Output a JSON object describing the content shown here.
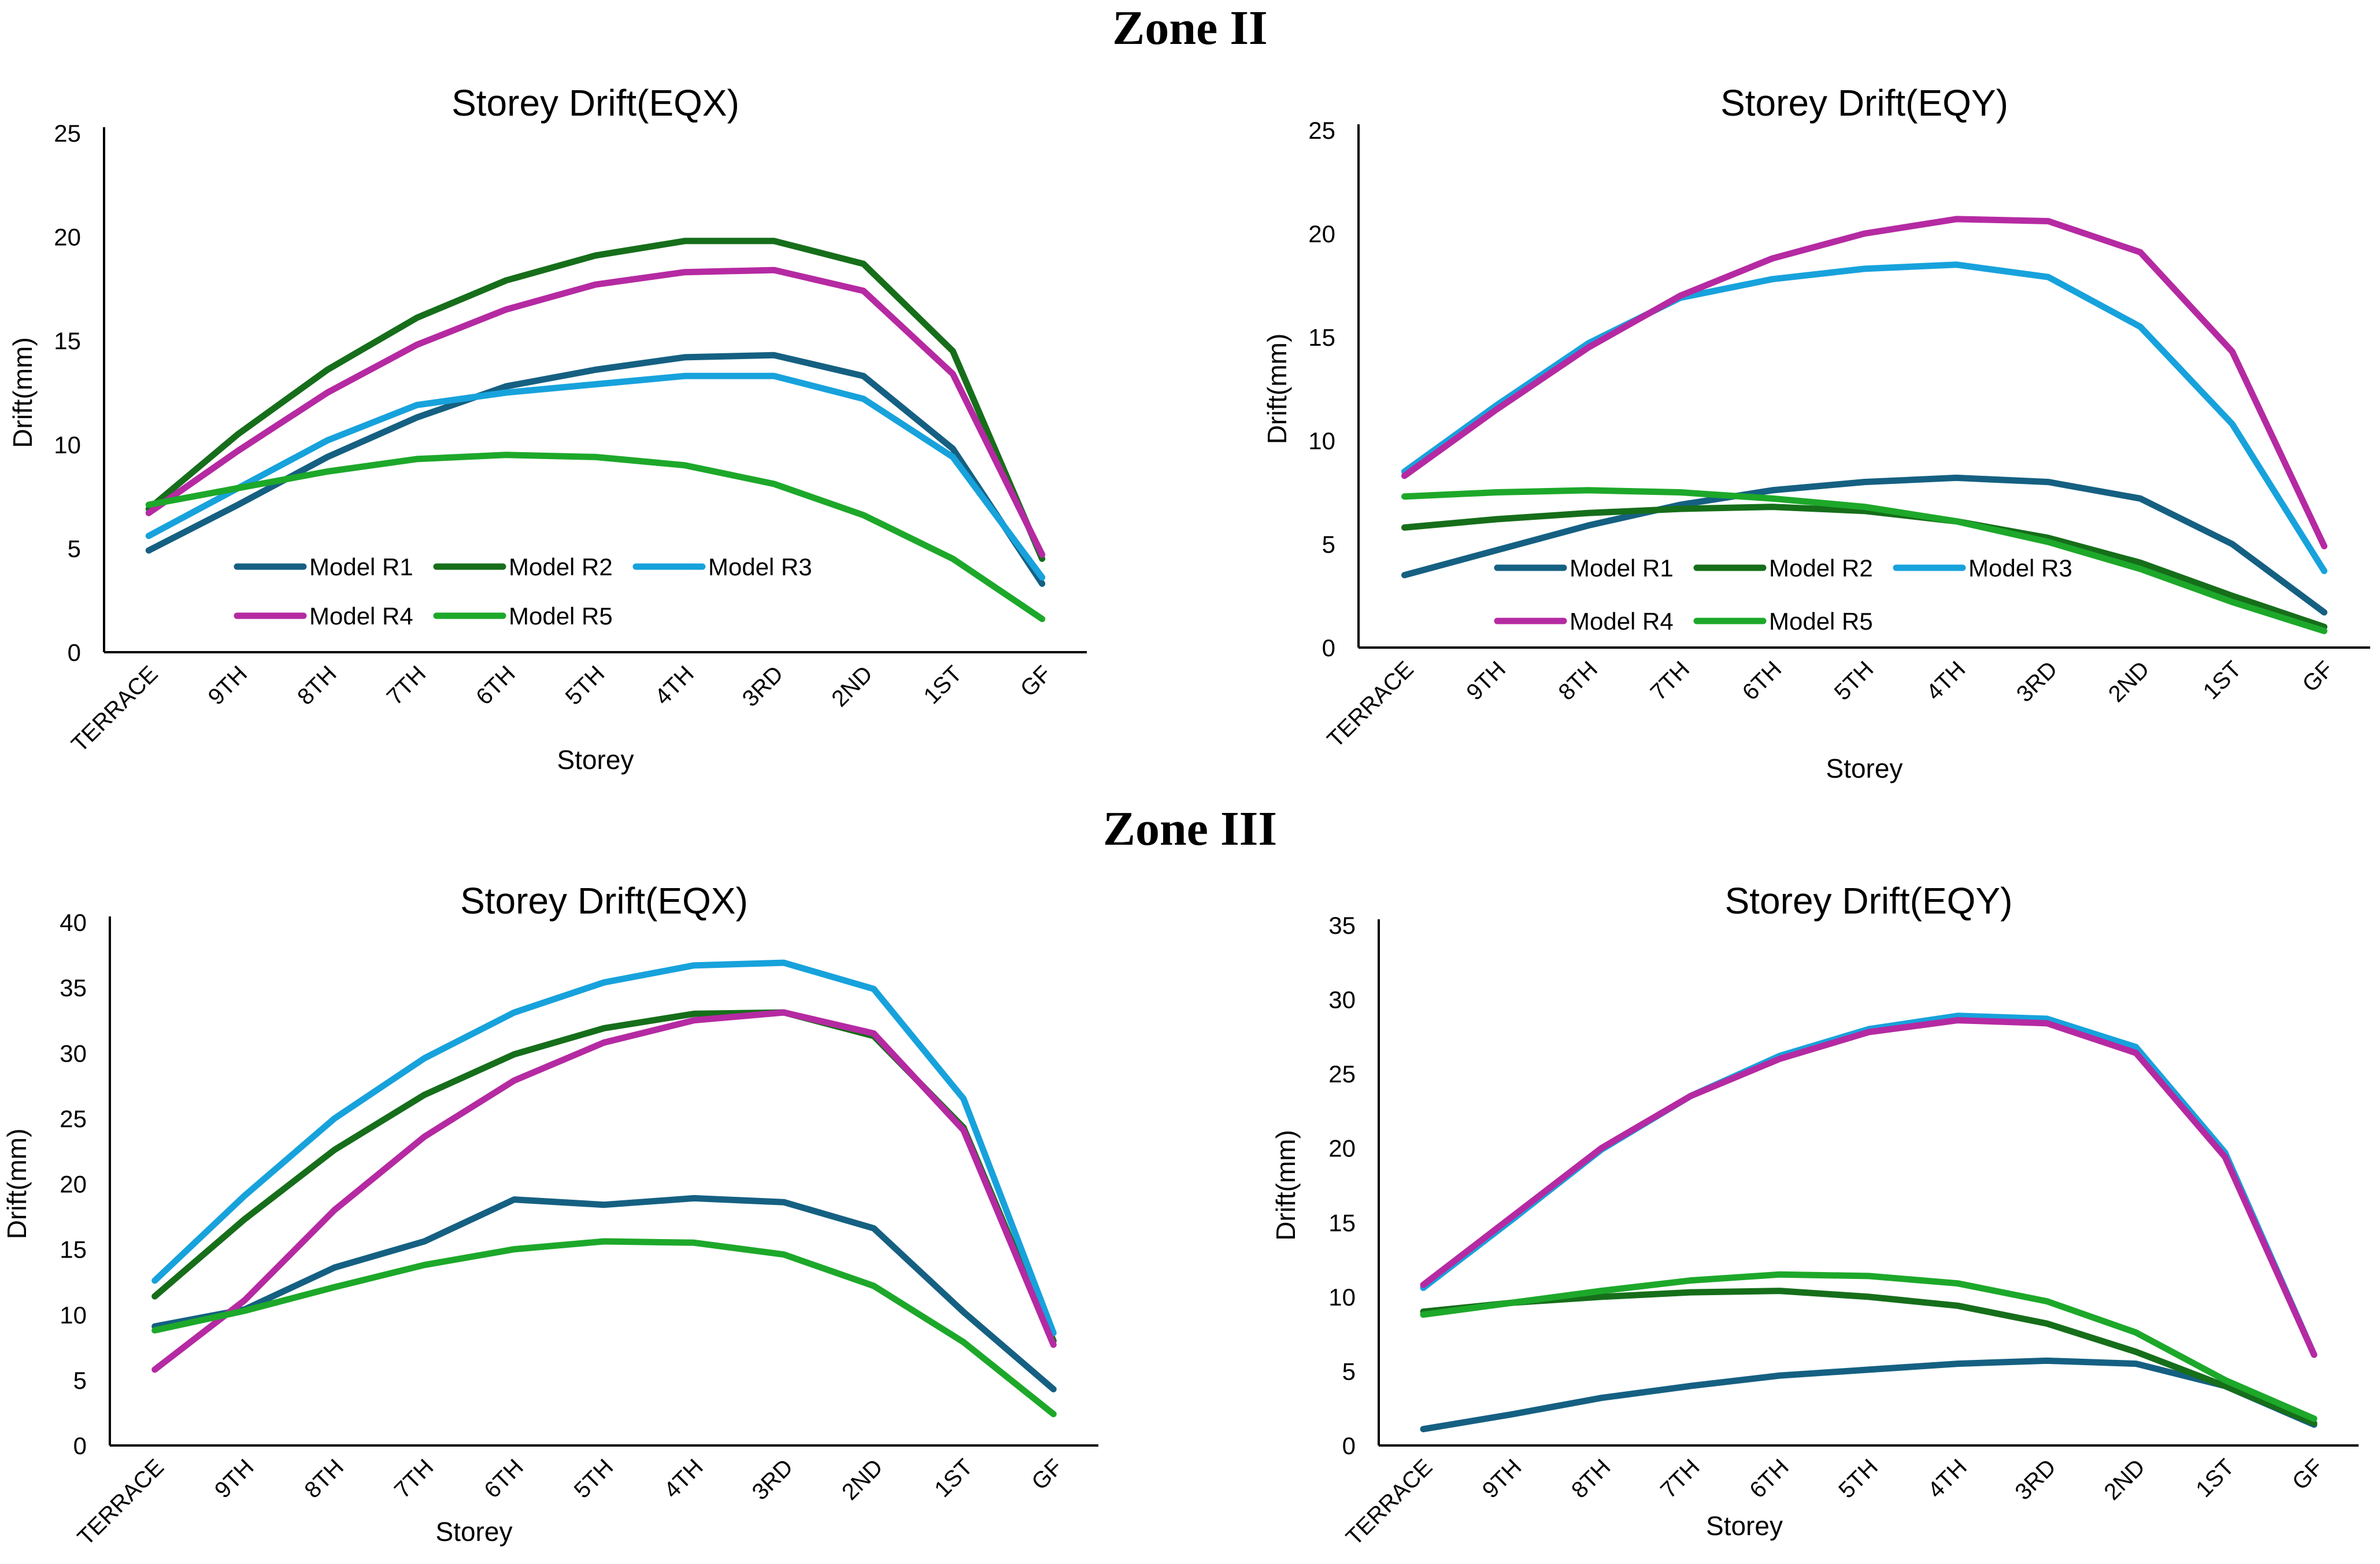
{
  "zones": [
    {
      "title": "Zone II"
    },
    {
      "title": "Zone III"
    }
  ],
  "categories": [
    "TERRACE",
    "9TH",
    "8TH",
    "7TH",
    "6TH",
    "5TH",
    "4TH",
    "3RD",
    "2ND",
    "1ST",
    "GF"
  ],
  "series_colors": {
    "Model R1": "#156082",
    "Model R2": "#166E1A",
    "Model R3": "#17A2DC",
    "Model R4": "#B52AA2",
    "Model R5": "#1DA82A"
  },
  "chart_data": [
    {
      "type": "line",
      "zone": "Zone II",
      "title": "Storey Drift(EQX)",
      "xlabel": "Storey",
      "ylabel": "Drift(mm)",
      "ylim": [
        0,
        25
      ],
      "yticks": [
        0,
        5,
        10,
        15,
        20,
        25
      ],
      "categories": [
        "TERRACE",
        "9TH",
        "8TH",
        "7TH",
        "6TH",
        "5TH",
        "4TH",
        "3RD",
        "2ND",
        "1ST",
        "GF"
      ],
      "legend_position": "bottom-left",
      "series": [
        {
          "name": "Model R1",
          "values": [
            4.9,
            7.1,
            9.4,
            11.3,
            12.8,
            13.6,
            14.2,
            14.3,
            13.3,
            9.8,
            3.3
          ]
        },
        {
          "name": "Model R2",
          "values": [
            6.9,
            10.5,
            13.6,
            16.1,
            17.9,
            19.1,
            19.8,
            19.8,
            18.7,
            14.5,
            4.5
          ]
        },
        {
          "name": "Model R3",
          "values": [
            5.6,
            7.9,
            10.2,
            11.9,
            12.5,
            12.9,
            13.3,
            13.3,
            12.2,
            9.4,
            3.6
          ]
        },
        {
          "name": "Model R4",
          "values": [
            6.7,
            9.7,
            12.5,
            14.8,
            16.5,
            17.7,
            18.3,
            18.4,
            17.4,
            13.4,
            4.7
          ]
        },
        {
          "name": "Model R5",
          "values": [
            7.1,
            7.9,
            8.7,
            9.3,
            9.5,
            9.4,
            9.0,
            8.1,
            6.6,
            4.5,
            1.6
          ]
        }
      ]
    },
    {
      "type": "line",
      "zone": "Zone II",
      "title": "Storey Drift(EQY)",
      "xlabel": "Storey",
      "ylabel": "Drift(mm)",
      "ylim": [
        0,
        25
      ],
      "yticks": [
        0,
        5,
        10,
        15,
        20,
        25
      ],
      "categories": [
        "TERRACE",
        "9TH",
        "8TH",
        "7TH",
        "6TH",
        "5TH",
        "4TH",
        "3RD",
        "2ND",
        "1ST",
        "GF"
      ],
      "legend_position": "bottom-left",
      "series": [
        {
          "name": "Model R1",
          "values": [
            3.5,
            4.7,
            5.9,
            6.9,
            7.6,
            8.0,
            8.2,
            8.0,
            7.2,
            5.0,
            1.7
          ]
        },
        {
          "name": "Model R2",
          "values": [
            5.8,
            6.2,
            6.5,
            6.7,
            6.8,
            6.6,
            6.1,
            5.3,
            4.1,
            2.5,
            1.0
          ]
        },
        {
          "name": "Model R3",
          "values": [
            8.5,
            11.7,
            14.7,
            16.9,
            17.8,
            18.3,
            18.5,
            17.9,
            15.5,
            10.8,
            3.7
          ]
        },
        {
          "name": "Model R4",
          "values": [
            8.3,
            11.5,
            14.5,
            17.0,
            18.8,
            20.0,
            20.7,
            20.6,
            19.1,
            14.3,
            4.9
          ]
        },
        {
          "name": "Model R5",
          "values": [
            7.3,
            7.5,
            7.6,
            7.5,
            7.2,
            6.8,
            6.1,
            5.1,
            3.8,
            2.2,
            0.8
          ]
        }
      ]
    },
    {
      "type": "line",
      "zone": "Zone III",
      "title": "Storey Drift(EQX)",
      "xlabel": "Storey",
      "ylabel": "Drift(mm)",
      "ylim": [
        0,
        40
      ],
      "yticks": [
        0,
        5,
        10,
        15,
        20,
        25,
        30,
        35,
        40
      ],
      "categories": [
        "TERRACE",
        "9TH",
        "8TH",
        "7TH",
        "6TH",
        "5TH",
        "4TH",
        "3RD",
        "2ND",
        "1ST",
        "GF"
      ],
      "series": [
        {
          "name": "Model R1",
          "values": [
            9.1,
            10.4,
            13.6,
            15.6,
            18.8,
            18.4,
            18.9,
            18.6,
            16.6,
            10.2,
            4.3
          ]
        },
        {
          "name": "Model R2",
          "values": [
            11.4,
            17.3,
            22.6,
            26.8,
            29.9,
            31.9,
            33.0,
            33.1,
            31.3,
            24.3,
            8.0
          ]
        },
        {
          "name": "Model R3",
          "values": [
            12.6,
            19.1,
            25.0,
            29.6,
            33.1,
            35.4,
            36.7,
            36.9,
            34.9,
            26.5,
            8.6
          ]
        },
        {
          "name": "Model R4",
          "values": [
            5.8,
            11.1,
            18.0,
            23.6,
            27.9,
            30.8,
            32.5,
            33.1,
            31.5,
            24.1,
            7.7
          ]
        },
        {
          "name": "Model R5",
          "values": [
            8.8,
            10.3,
            12.1,
            13.8,
            15.0,
            15.6,
            15.5,
            14.6,
            12.2,
            7.9,
            2.4
          ]
        }
      ]
    },
    {
      "type": "line",
      "zone": "Zone III",
      "title": "Storey Drift(EQY)",
      "xlabel": "Storey",
      "ylabel": "Drift(mm)",
      "ylim": [
        0,
        35
      ],
      "yticks": [
        0,
        5,
        10,
        15,
        20,
        25,
        30,
        35
      ],
      "categories": [
        "TERRACE",
        "9TH",
        "8TH",
        "7TH",
        "6TH",
        "5TH",
        "4TH",
        "3RD",
        "2ND",
        "1ST",
        "GF"
      ],
      "series": [
        {
          "name": "Model R1",
          "values": [
            1.1,
            2.1,
            3.2,
            4.0,
            4.7,
            5.1,
            5.5,
            5.7,
            5.5,
            4.0,
            1.4
          ]
        },
        {
          "name": "Model R2",
          "values": [
            9.0,
            9.6,
            10.0,
            10.3,
            10.4,
            10.0,
            9.4,
            8.2,
            6.3,
            4.0,
            1.5
          ]
        },
        {
          "name": "Model R3",
          "values": [
            10.6,
            15.2,
            19.9,
            23.5,
            26.2,
            28.0,
            28.9,
            28.7,
            26.8,
            19.7,
            6.1
          ]
        },
        {
          "name": "Model R4",
          "values": [
            10.8,
            15.4,
            20.0,
            23.5,
            26.0,
            27.8,
            28.6,
            28.4,
            26.4,
            19.4,
            6.1
          ]
        },
        {
          "name": "Model R5",
          "values": [
            8.8,
            9.6,
            10.4,
            11.1,
            11.5,
            11.4,
            10.9,
            9.7,
            7.6,
            4.4,
            1.8
          ]
        }
      ]
    }
  ]
}
